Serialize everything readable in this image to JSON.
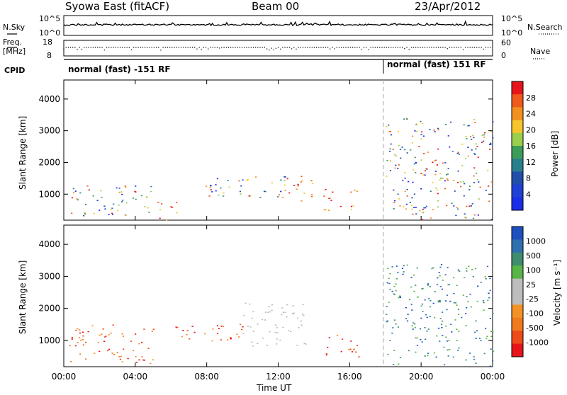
{
  "header": {
    "title": "Syowa East (fitACF)",
    "beam": "Beam 00",
    "date": "23/Apr/2012"
  },
  "top_panels": {
    "nsky_label": "N.Sky",
    "nsearch_label": "N.Search",
    "nsky_scale_top": "10^5",
    "nsky_scale_bottom": "10^0",
    "freq_label_1": "Freq.",
    "freq_label_2": "[MHz]",
    "freq_top": "18",
    "freq_bottom": "8",
    "nave_top": "60",
    "nave_bottom": "0",
    "nave_label": "Nave",
    "cpid_label": "CPID",
    "mode_1": "normal (fast) -151 RF",
    "mode_2": "normal (fast) 151 RF"
  },
  "axes": {
    "ylabel": "Slant Range [km]",
    "xlabel": "Time UT",
    "yticks": [
      "4000",
      "3000",
      "2000",
      "1000"
    ],
    "xticks": [
      "00:00",
      "04:00",
      "08:00",
      "12:00",
      "16:00",
      "20:00",
      "00:00"
    ]
  },
  "colorbars": {
    "power": {
      "label": "Power [dB]",
      "ticks": [
        "28",
        "24",
        "20",
        "16",
        "12",
        "8",
        "4"
      ],
      "colors": [
        "#e8141b",
        "#f05a1a",
        "#f3901f",
        "#f6c42b",
        "#9bcf4b",
        "#3d9c5a",
        "#2a7f8c",
        "#204fa9",
        "#1f3fd6",
        "#1a2ee8"
      ]
    },
    "velocity": {
      "label": "Velocity [m s⁻¹]",
      "ticks": [
        "1000",
        "500",
        "100",
        "25",
        "-25",
        "-100",
        "-500",
        "-1000"
      ],
      "colors": [
        "#1f4fbf",
        "#2f70b0",
        "#3f8c6f",
        "#58b547",
        "#bdbdbd",
        "#bdbdbd",
        "#f49225",
        "#f07a1d",
        "#ee4a1a",
        "#e8141b"
      ]
    }
  },
  "chart_data": [
    {
      "type": "heatmap",
      "title": "Power",
      "xlabel": "Time UT",
      "ylabel": "Slant Range [km]",
      "xlim": [
        "00:00",
        "24:00"
      ],
      "ylim": [
        180,
        4600
      ],
      "colorbar_label": "Power [dB]",
      "colorbar_range": [
        0,
        32
      ],
      "scatter_regions": [
        {
          "t0": 0.3,
          "t1": 5.0,
          "r0": 300,
          "r1": 1300,
          "dominant": "mixed",
          "note": "patchy echoes"
        },
        {
          "t0": 3.4,
          "t1": 4.0,
          "r0": 900,
          "r1": 1300,
          "dominant": "high"
        },
        {
          "t0": 5.2,
          "t1": 6.5,
          "r0": 200,
          "r1": 800,
          "dominant": "high"
        },
        {
          "t0": 7.8,
          "t1": 12.5,
          "r0": 900,
          "r1": 1600,
          "dominant": "mixed"
        },
        {
          "t0": 12.0,
          "t1": 14.0,
          "r0": 800,
          "r1": 1600,
          "dominant": "high"
        },
        {
          "t0": 14.5,
          "t1": 16.5,
          "r0": 500,
          "r1": 1200,
          "dominant": "high"
        },
        {
          "t0": 18.0,
          "t1": 24.0,
          "r0": 200,
          "r1": 3400,
          "dominant": "mixed"
        }
      ]
    },
    {
      "type": "heatmap",
      "title": "Velocity",
      "xlabel": "Time UT",
      "ylabel": "Slant Range [km]",
      "xlim": [
        "00:00",
        "24:00"
      ],
      "ylim": [
        180,
        4600
      ],
      "colorbar_label": "Velocity [m s-1]",
      "colorbar_ticks": [
        1000,
        500,
        100,
        25,
        -25,
        -100,
        -500,
        -1000
      ],
      "scatter_regions": [
        {
          "t0": 0.3,
          "t1": 5.0,
          "r0": 300,
          "r1": 1500,
          "dominant": "negative"
        },
        {
          "t0": 6.0,
          "t1": 10.0,
          "r0": 1000,
          "r1": 1600,
          "dominant": "negative"
        },
        {
          "t0": 10.0,
          "t1": 13.5,
          "r0": 800,
          "r1": 2200,
          "dominant": "near-zero"
        },
        {
          "t0": 14.5,
          "t1": 16.5,
          "r0": 500,
          "r1": 1200,
          "dominant": "negative"
        },
        {
          "t0": 18.0,
          "t1": 24.0,
          "r0": 200,
          "r1": 3400,
          "dominant": "positive"
        }
      ]
    }
  ]
}
